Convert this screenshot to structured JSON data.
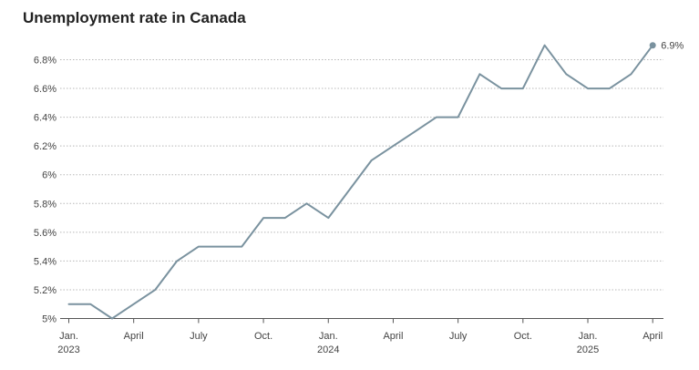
{
  "chart_data": {
    "type": "line",
    "title": "Unemployment rate in Canada",
    "xlabel": "",
    "ylabel": "",
    "ylim": [
      5.0,
      6.9
    ],
    "grid": true,
    "line_color": "#7a929f",
    "series": [
      {
        "name": "",
        "x": [
          "2023-01",
          "2023-02",
          "2023-03",
          "2023-04",
          "2023-05",
          "2023-06",
          "2023-07",
          "2023-08",
          "2023-09",
          "2023-10",
          "2023-11",
          "2023-12",
          "2024-01",
          "2024-02",
          "2024-03",
          "2024-04",
          "2024-05",
          "2024-06",
          "2024-07",
          "2024-08",
          "2024-09",
          "2024-10",
          "2024-11",
          "2024-12",
          "2025-01",
          "2025-02",
          "2025-03",
          "2025-04"
        ],
        "values": [
          5.1,
          5.1,
          5.0,
          5.1,
          5.2,
          5.4,
          5.5,
          5.5,
          5.5,
          5.7,
          5.7,
          5.8,
          5.7,
          5.9,
          6.1,
          6.2,
          6.3,
          6.4,
          6.4,
          6.7,
          6.6,
          6.6,
          6.9,
          6.7,
          6.6,
          6.6,
          6.7,
          6.9
        ]
      }
    ],
    "y_ticks": [
      {
        "value": 5.0,
        "label": "5%"
      },
      {
        "value": 5.2,
        "label": "5.2%"
      },
      {
        "value": 5.4,
        "label": "5.4%"
      },
      {
        "value": 5.6,
        "label": "5.6%"
      },
      {
        "value": 5.8,
        "label": "5.8%"
      },
      {
        "value": 6.0,
        "label": "6%"
      },
      {
        "value": 6.2,
        "label": "6.2%"
      },
      {
        "value": 6.4,
        "label": "6.4%"
      },
      {
        "value": 6.6,
        "label": "6.6%"
      },
      {
        "value": 6.8,
        "label": "6.8%"
      }
    ],
    "x_ticks": [
      {
        "value": "2023-01",
        "label": "Jan.",
        "year": "2023"
      },
      {
        "value": "2023-04",
        "label": "April",
        "year": ""
      },
      {
        "value": "2023-07",
        "label": "July",
        "year": ""
      },
      {
        "value": "2023-10",
        "label": "Oct.",
        "year": ""
      },
      {
        "value": "2024-01",
        "label": "Jan.",
        "year": "2024"
      },
      {
        "value": "2024-04",
        "label": "April",
        "year": ""
      },
      {
        "value": "2024-07",
        "label": "July",
        "year": ""
      },
      {
        "value": "2024-10",
        "label": "Oct.",
        "year": ""
      },
      {
        "value": "2025-01",
        "label": "Jan.",
        "year": "2025"
      },
      {
        "value": "2025-04",
        "label": "April",
        "year": ""
      }
    ],
    "end_label": "6.9%"
  }
}
